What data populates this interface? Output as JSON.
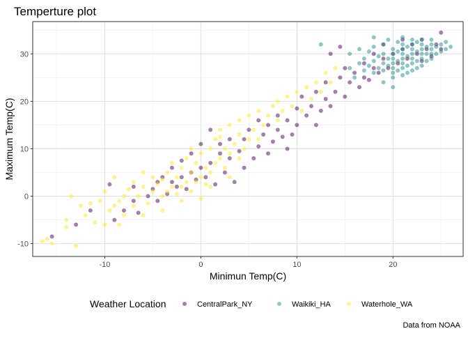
{
  "chart_data": {
    "type": "scatter",
    "title": "Temperture plot",
    "xlabel": "Minimun Temp(C)",
    "ylabel": "Maximum Temp(C)",
    "caption": "Data from NOAA",
    "xlim": [
      -17.5,
      27.3
    ],
    "ylim": [
      -12.7,
      36.8
    ],
    "x_ticks": [
      -10,
      0,
      10,
      20
    ],
    "y_ticks": [
      -10,
      0,
      10,
      20,
      30
    ],
    "grid": true,
    "legend": {
      "title": "Weather Location",
      "position": "bottom"
    },
    "point_opacity": 0.5,
    "series": [
      {
        "name": "CentralPark_NY",
        "color": "#440154",
        "points": [
          [
            -15.5,
            -8.5
          ],
          [
            -13,
            -6
          ],
          [
            -11.5,
            -3
          ],
          [
            -9.5,
            2.5
          ],
          [
            -9,
            -5
          ],
          [
            -8,
            -3
          ],
          [
            -7,
            -1
          ],
          [
            -7,
            2
          ],
          [
            -6.5,
            -3.5
          ],
          [
            -5.5,
            0
          ],
          [
            -5,
            1.5
          ],
          [
            -4.5,
            -1
          ],
          [
            -4.5,
            3
          ],
          [
            -4,
            4
          ],
          [
            -3.5,
            0.5
          ],
          [
            -3,
            3
          ],
          [
            -3,
            6
          ],
          [
            -2.5,
            2
          ],
          [
            -2,
            4
          ],
          [
            -2,
            7.5
          ],
          [
            -1.5,
            1.5
          ],
          [
            -1,
            5
          ],
          [
            -1,
            9
          ],
          [
            -0.5,
            3.5
          ],
          [
            0,
            6
          ],
          [
            0,
            11
          ],
          [
            0.5,
            4
          ],
          [
            1,
            7
          ],
          [
            1,
            14
          ],
          [
            1.5,
            2.5
          ],
          [
            2,
            9
          ],
          [
            2,
            11
          ],
          [
            2.5,
            5
          ],
          [
            3,
            8
          ],
          [
            3,
            12
          ],
          [
            3.5,
            3
          ],
          [
            4,
            9.5
          ],
          [
            4.5,
            6
          ],
          [
            4.5,
            12
          ],
          [
            5,
            14
          ],
          [
            5.5,
            8
          ],
          [
            6,
            10.5
          ],
          [
            6,
            16
          ],
          [
            6.5,
            13
          ],
          [
            7,
            9
          ],
          [
            7,
            15
          ],
          [
            7.5,
            11.5
          ],
          [
            8,
            14
          ],
          [
            8,
            17
          ],
          [
            8.5,
            12.5
          ],
          [
            9,
            10
          ],
          [
            9,
            16
          ],
          [
            9.5,
            13
          ],
          [
            10,
            18.5
          ],
          [
            10,
            15
          ],
          [
            10.5,
            21
          ],
          [
            11,
            17
          ],
          [
            11.5,
            19
          ],
          [
            12,
            22
          ],
          [
            12,
            15
          ],
          [
            12.5,
            18
          ],
          [
            13,
            20.5
          ],
          [
            13,
            24
          ],
          [
            13.5,
            19
          ],
          [
            14,
            22
          ],
          [
            14.5,
            25
          ],
          [
            15,
            21
          ],
          [
            15,
            27
          ],
          [
            15.5,
            24
          ],
          [
            16,
            26
          ],
          [
            16.5,
            23
          ],
          [
            17,
            28
          ],
          [
            17,
            25
          ],
          [
            17.5,
            24.5
          ],
          [
            18,
            27
          ],
          [
            18,
            30
          ],
          [
            18.5,
            26
          ],
          [
            19,
            29
          ],
          [
            19,
            32
          ],
          [
            19.5,
            27
          ],
          [
            20,
            30
          ],
          [
            20.5,
            28
          ],
          [
            21,
            31
          ],
          [
            21,
            33
          ],
          [
            21.5,
            29
          ],
          [
            22,
            32
          ],
          [
            22.5,
            30
          ],
          [
            23,
            28.5
          ],
          [
            23,
            33
          ],
          [
            23.5,
            31
          ],
          [
            24,
            29.5
          ],
          [
            24.5,
            32
          ],
          [
            25,
            34.5
          ],
          [
            25,
            31
          ],
          [
            13.5,
            30
          ],
          [
            14.5,
            31.5
          ]
        ]
      },
      {
        "name": "Waikiki_HA",
        "color": "#21908C",
        "points": [
          [
            12.5,
            32
          ],
          [
            15.5,
            27
          ],
          [
            15.5,
            30
          ],
          [
            16,
            25
          ],
          [
            16.5,
            28
          ],
          [
            16.5,
            31
          ],
          [
            17,
            26.5
          ],
          [
            17,
            29
          ],
          [
            17.5,
            27.5
          ],
          [
            17.5,
            30.5
          ],
          [
            18,
            26
          ],
          [
            18,
            28.5
          ],
          [
            18,
            31.5
          ],
          [
            18.5,
            27
          ],
          [
            18.5,
            29.5
          ],
          [
            19,
            24
          ],
          [
            19,
            26.5
          ],
          [
            19,
            28
          ],
          [
            19,
            30
          ],
          [
            19,
            32
          ],
          [
            19.5,
            27.5
          ],
          [
            19.5,
            29
          ],
          [
            20,
            25
          ],
          [
            20,
            26
          ],
          [
            20,
            27
          ],
          [
            20,
            28
          ],
          [
            20,
            29
          ],
          [
            20,
            30
          ],
          [
            20,
            31
          ],
          [
            20.5,
            26.5
          ],
          [
            20.5,
            28.5
          ],
          [
            20.5,
            30.5
          ],
          [
            20.5,
            32.5
          ],
          [
            21,
            25.5
          ],
          [
            21,
            27
          ],
          [
            21,
            28
          ],
          [
            21,
            29
          ],
          [
            21,
            30
          ],
          [
            21,
            31
          ],
          [
            21,
            32
          ],
          [
            21.5,
            26
          ],
          [
            21.5,
            27.5
          ],
          [
            21.5,
            29.5
          ],
          [
            21.5,
            31.5
          ],
          [
            22,
            26.5
          ],
          [
            22,
            28
          ],
          [
            22,
            29
          ],
          [
            22,
            30
          ],
          [
            22,
            31
          ],
          [
            22,
            32
          ],
          [
            22,
            33
          ],
          [
            22.5,
            27
          ],
          [
            22.5,
            28.5
          ],
          [
            22.5,
            30.5
          ],
          [
            22.5,
            32.5
          ],
          [
            23,
            27.5
          ],
          [
            23,
            29
          ],
          [
            23,
            30
          ],
          [
            23,
            31
          ],
          [
            23,
            32
          ],
          [
            23,
            33
          ],
          [
            23.5,
            28.5
          ],
          [
            23.5,
            30
          ],
          [
            23.5,
            31.5
          ],
          [
            24,
            29
          ],
          [
            24,
            30
          ],
          [
            24,
            31
          ],
          [
            24,
            32
          ],
          [
            24,
            33
          ],
          [
            24.5,
            30
          ],
          [
            24.5,
            31.5
          ],
          [
            25,
            30.5
          ],
          [
            25,
            32
          ],
          [
            25.5,
            31
          ],
          [
            25.5,
            32.5
          ],
          [
            26,
            31.5
          ],
          [
            21,
            33.5
          ],
          [
            19.5,
            33
          ],
          [
            18,
            33.5
          ],
          [
            20,
            23
          ]
        ]
      },
      {
        "name": "Waterhole_WA",
        "color": "#FDE725",
        "points": [
          [
            -16.5,
            -9.5
          ],
          [
            -16,
            -9
          ],
          [
            -15.5,
            -10
          ],
          [
            -14,
            -5
          ],
          [
            -14,
            -6.5
          ],
          [
            -13.5,
            0
          ],
          [
            -13,
            -10.5
          ],
          [
            -12.5,
            -2
          ],
          [
            -12,
            -4
          ],
          [
            -11.5,
            -1.5
          ],
          [
            -11,
            -5.5
          ],
          [
            -10.5,
            -1
          ],
          [
            -10,
            1
          ],
          [
            -9.5,
            -3
          ],
          [
            -9,
            -2
          ],
          [
            -9,
            4
          ],
          [
            -8.5,
            -1
          ],
          [
            -8,
            0
          ],
          [
            -8,
            -4
          ],
          [
            -7.5,
            1.5
          ],
          [
            -7,
            -2
          ],
          [
            -7,
            3
          ],
          [
            -6.5,
            0
          ],
          [
            -6,
            2
          ],
          [
            -6,
            5
          ],
          [
            -5.5,
            -1.5
          ],
          [
            -5,
            1
          ],
          [
            -5,
            4
          ],
          [
            -4.5,
            2.5
          ],
          [
            -4,
            0
          ],
          [
            -4,
            3.5
          ],
          [
            -3.5,
            1
          ],
          [
            -3.5,
            5
          ],
          [
            -3,
            2
          ],
          [
            -3,
            7
          ],
          [
            -2.5,
            0.5
          ],
          [
            -2.5,
            4
          ],
          [
            -2,
            2
          ],
          [
            -2,
            6
          ],
          [
            -1.5,
            3
          ],
          [
            -1.5,
            8
          ],
          [
            -1,
            1
          ],
          [
            -1,
            5
          ],
          [
            -0.5,
            3
          ],
          [
            -0.5,
            7
          ],
          [
            0,
            4
          ],
          [
            0,
            9
          ],
          [
            0.5,
            2.5
          ],
          [
            0.5,
            6
          ],
          [
            1,
            5
          ],
          [
            1,
            10
          ],
          [
            1.5,
            7
          ],
          [
            1.5,
            12
          ],
          [
            2,
            8
          ],
          [
            2,
            14
          ],
          [
            2.5,
            6
          ],
          [
            2.5,
            10
          ],
          [
            3,
            9
          ],
          [
            3,
            15
          ],
          [
            3.5,
            11
          ],
          [
            4,
            13
          ],
          [
            4,
            16
          ],
          [
            4.5,
            10
          ],
          [
            5,
            12
          ],
          [
            5,
            17
          ],
          [
            5.5,
            14
          ],
          [
            6,
            12
          ],
          [
            6,
            18
          ],
          [
            6.5,
            15
          ],
          [
            7,
            17
          ],
          [
            7.5,
            19
          ],
          [
            8,
            16
          ],
          [
            8,
            20
          ],
          [
            8.5,
            18
          ],
          [
            9,
            21
          ],
          [
            9.5,
            19
          ],
          [
            10,
            22
          ],
          [
            10.5,
            18
          ],
          [
            11,
            23
          ],
          [
            11.5,
            20.5
          ],
          [
            12,
            24
          ],
          [
            12.5,
            22
          ],
          [
            13,
            26
          ],
          [
            13.5,
            24
          ],
          [
            14,
            27
          ],
          [
            -2,
            -1
          ],
          [
            -4,
            -3
          ],
          [
            -6,
            -4
          ],
          [
            0,
            -0.5
          ],
          [
            1,
            2
          ],
          [
            3,
            4
          ],
          [
            -8.5,
            -6
          ],
          [
            -10,
            -6
          ],
          [
            -1,
            10
          ],
          [
            2,
            12.5
          ],
          [
            4,
            8
          ]
        ]
      }
    ]
  }
}
